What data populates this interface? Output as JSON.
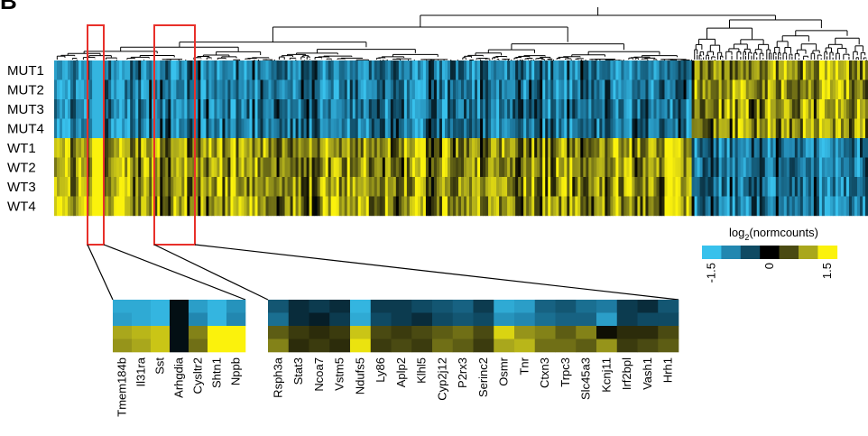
{
  "panel_letter": "B",
  "colors": {
    "scale": [
      "#38c1ec",
      "#2287b0",
      "#0f4a63",
      "#000000",
      "#4a4a12",
      "#a9a71c",
      "#fbf20c"
    ],
    "highlight_box": "#e8302a"
  },
  "legend": {
    "title_prefix": "log",
    "title_sub": "2",
    "title_suffix": "(normcounts)",
    "tick_labels": [
      "-1.5",
      "0",
      "1.5"
    ]
  },
  "chart_data": {
    "type": "heatmap",
    "rows": [
      "MUT1",
      "MUT2",
      "MUT3",
      "MUT4",
      "WT1",
      "WT2",
      "WT3",
      "WT4"
    ],
    "value_range": [
      -1.5,
      1.5
    ],
    "dendrogram": "hierarchical clustering of genes (columns)",
    "zoom_panels": [
      {
        "name": "left",
        "genes": [
          "Tmem184b",
          "Il31ra",
          "Sst",
          "Arhgdia",
          "Cysltr2",
          "Shtn1",
          "Nppb"
        ],
        "values": [
          [
            -1.3,
            -1.3,
            -1.4,
            -0.1,
            -1.2,
            -1.4,
            -1.1
          ],
          [
            -1.2,
            -1.3,
            -1.4,
            -0.1,
            -1.0,
            -1.4,
            -1.0
          ],
          [
            1.0,
            1.1,
            1.2,
            -0.1,
            0.8,
            1.5,
            1.5
          ],
          [
            0.9,
            1.0,
            1.2,
            -0.1,
            0.7,
            1.5,
            1.5
          ]
        ]
      },
      {
        "name": "right",
        "genes": [
          "Rsph3a",
          "Stat3",
          "Ncoa7",
          "Vstm5",
          "Ndufs5",
          "Ly86",
          "Aplp2",
          "Klhl5",
          "Cyp2j12",
          "P2rx3",
          "Serinc2",
          "Osmr",
          "Tnr",
          "Ctxn3",
          "Trpc3",
          "Slc45a3",
          "Kcnj11",
          "Irf2bpl",
          "Vash1",
          "Hrh1"
        ],
        "values": [
          [
            -0.6,
            -0.3,
            -0.4,
            -0.3,
            -1.4,
            -0.4,
            -0.4,
            -0.5,
            -0.6,
            -0.7,
            -0.4,
            -1.3,
            -1.2,
            -0.7,
            -0.6,
            -0.8,
            -0.9,
            -0.4,
            -0.3,
            -0.6
          ],
          [
            -0.8,
            -0.3,
            -0.2,
            -0.4,
            -1.3,
            -0.5,
            -0.4,
            -0.3,
            -0.5,
            -0.6,
            -0.5,
            -1.1,
            -1.0,
            -0.8,
            -0.7,
            -0.7,
            -1.2,
            -0.4,
            -0.5,
            -0.5
          ],
          [
            0.6,
            0.4,
            0.3,
            0.4,
            1.2,
            0.5,
            0.4,
            0.5,
            0.6,
            0.7,
            0.5,
            1.3,
            0.9,
            0.8,
            0.6,
            0.8,
            0.1,
            0.3,
            0.3,
            0.5
          ],
          [
            0.8,
            0.3,
            0.4,
            0.3,
            1.4,
            0.4,
            0.5,
            0.4,
            0.7,
            0.6,
            0.4,
            1.0,
            1.1,
            0.7,
            0.7,
            0.6,
            0.9,
            0.4,
            0.5,
            0.6
          ]
        ]
      }
    ]
  }
}
